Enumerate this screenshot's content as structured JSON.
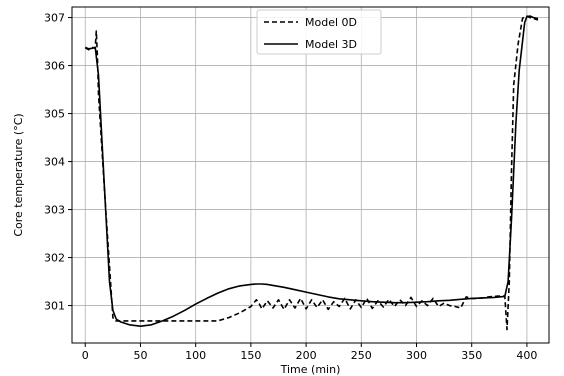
{
  "chart_data": {
    "type": "line",
    "xlabel": "Time (min)",
    "ylabel": "Core temperature (°C)",
    "xlim": [
      -12,
      420
    ],
    "ylim": [
      300.22,
      307.22
    ],
    "xticks": [
      0,
      50,
      100,
      150,
      200,
      250,
      300,
      350,
      400
    ],
    "yticks": [
      301,
      302,
      303,
      304,
      305,
      306,
      307
    ],
    "grid": true,
    "legend_position": "top-center",
    "series": [
      {
        "name": "Model 0D",
        "style": "dashed",
        "color": "#000000",
        "x": [
          0,
          3,
          6,
          9,
          10,
          11,
          12,
          18,
          24,
          25,
          27,
          30,
          40,
          60,
          80,
          100,
          120,
          130,
          140,
          150,
          155,
          158,
          160,
          165,
          170,
          175,
          180,
          185,
          190,
          195,
          200,
          205,
          210,
          215,
          220,
          225,
          230,
          235,
          240,
          245,
          250,
          255,
          260,
          265,
          270,
          275,
          280,
          285,
          290,
          295,
          300,
          305,
          310,
          315,
          320,
          325,
          330,
          335,
          340,
          345,
          350,
          355,
          360,
          365,
          370,
          375,
          380,
          382,
          384,
          386,
          388,
          392,
          396,
          398,
          400,
          403,
          406,
          410
        ],
        "y": [
          306.37,
          306.33,
          306.38,
          306.36,
          306.72,
          306.2,
          305.4,
          303.2,
          301.1,
          300.75,
          300.68,
          300.68,
          300.68,
          300.68,
          300.68,
          300.68,
          300.68,
          300.75,
          300.85,
          300.98,
          301.12,
          301.02,
          300.93,
          301.1,
          300.95,
          301.12,
          300.92,
          301.12,
          300.95,
          301.15,
          300.93,
          301.12,
          300.96,
          301.12,
          300.92,
          301.08,
          300.98,
          301.15,
          300.93,
          301.12,
          300.96,
          301.15,
          300.94,
          301.1,
          300.97,
          301.13,
          300.98,
          301.12,
          301.0,
          301.17,
          300.98,
          301.1,
          301.0,
          301.15,
          300.98,
          301.05,
          301.0,
          300.98,
          300.95,
          301.18,
          301.15,
          301.15,
          301.16,
          301.18,
          301.19,
          301.2,
          301.2,
          300.5,
          301.5,
          303.8,
          305.6,
          306.45,
          306.98,
          307.02,
          307.03,
          307.0,
          306.98,
          306.95
        ]
      },
      {
        "name": "Model 3D",
        "style": "solid",
        "color": "#000000",
        "x": [
          0,
          3,
          6,
          9,
          12,
          18,
          22,
          25,
          28,
          32,
          40,
          50,
          60,
          70,
          80,
          90,
          100,
          110,
          120,
          130,
          140,
          150,
          155,
          160,
          165,
          170,
          180,
          190,
          200,
          210,
          220,
          230,
          240,
          250,
          260,
          270,
          280,
          290,
          300,
          310,
          320,
          330,
          340,
          350,
          360,
          370,
          380,
          383,
          386,
          390,
          393,
          396,
          398,
          400,
          403,
          406,
          410
        ],
        "y": [
          306.38,
          306.35,
          306.36,
          306.38,
          305.8,
          303.2,
          301.5,
          300.9,
          300.72,
          300.66,
          300.6,
          300.57,
          300.6,
          300.68,
          300.78,
          300.9,
          301.03,
          301.15,
          301.26,
          301.35,
          301.41,
          301.44,
          301.45,
          301.45,
          301.44,
          301.42,
          301.38,
          301.33,
          301.28,
          301.23,
          301.18,
          301.14,
          301.12,
          301.1,
          301.08,
          301.07,
          301.06,
          301.06,
          301.07,
          301.08,
          301.1,
          301.11,
          301.13,
          301.15,
          301.16,
          301.17,
          301.19,
          301.5,
          302.8,
          304.8,
          305.9,
          306.5,
          306.9,
          307.02,
          307.03,
          307.0,
          306.98
        ]
      }
    ]
  }
}
